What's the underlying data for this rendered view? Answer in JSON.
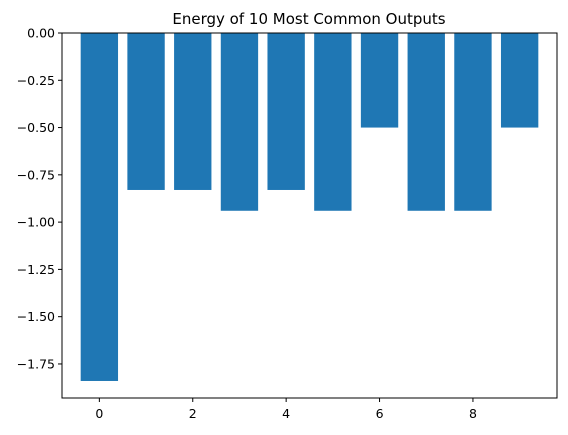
{
  "chart_data": {
    "type": "bar",
    "title": "Energy of 10 Most Common Outputs",
    "xlabel": "",
    "ylabel": "",
    "x": [
      0,
      1,
      2,
      3,
      4,
      5,
      6,
      7,
      8,
      9
    ],
    "values": [
      -1.84,
      -0.83,
      -0.83,
      -0.94,
      -0.83,
      -0.94,
      -0.5,
      -0.94,
      -0.94,
      -0.5
    ],
    "xlim": [
      -0.8,
      9.8
    ],
    "ylim": [
      -1.93,
      0.0
    ],
    "x_ticks": [
      0,
      2,
      4,
      6,
      8
    ],
    "x_tick_labels": [
      "0",
      "2",
      "4",
      "6",
      "8"
    ],
    "y_ticks": [
      0,
      -0.25,
      -0.5,
      -0.75,
      -1.0,
      -1.25,
      -1.5,
      -1.75
    ],
    "y_tick_labels": [
      "0.00",
      "−0.25",
      "−0.50",
      "−0.75",
      "−1.00",
      "−1.25",
      "−1.50",
      "−1.75"
    ],
    "bar_width": 0.8,
    "bar_color": "#1f77b4",
    "grid": false,
    "legend": "none"
  }
}
